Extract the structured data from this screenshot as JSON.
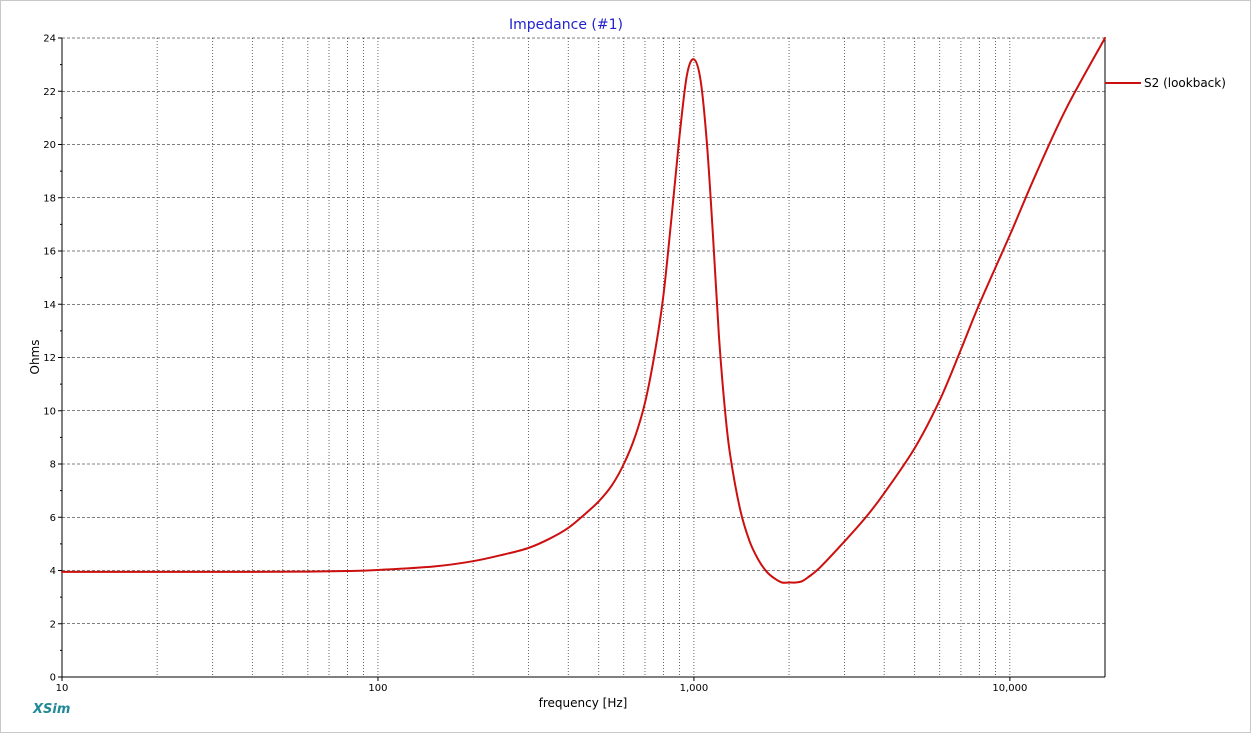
{
  "app": {
    "brand": "XSim"
  },
  "colors": {
    "title": "#1f1fd0",
    "series": "#cc1010",
    "brand": "#1f8a96",
    "grid": "#8a8a8a"
  },
  "chart_data": {
    "type": "line",
    "title": "Impedance (#1)",
    "xlabel": "frequency [Hz]",
    "ylabel": "Ohms",
    "xscale": "log",
    "xlim": [
      10,
      20000
    ],
    "ylim": [
      0,
      24
    ],
    "grid": true,
    "legend_position": "right",
    "x_ticks": [
      {
        "value": 10,
        "label": "10"
      },
      {
        "value": 100,
        "label": "100"
      },
      {
        "value": 1000,
        "label": "1,000"
      },
      {
        "value": 10000,
        "label": "10,000"
      }
    ],
    "y_ticks": [
      {
        "value": 0,
        "label": "0"
      },
      {
        "value": 2,
        "label": "2"
      },
      {
        "value": 4,
        "label": "4"
      },
      {
        "value": 6,
        "label": "6"
      },
      {
        "value": 8,
        "label": "8"
      },
      {
        "value": 10,
        "label": "10"
      },
      {
        "value": 12,
        "label": "12"
      },
      {
        "value": 14,
        "label": "14"
      },
      {
        "value": 16,
        "label": "16"
      },
      {
        "value": 18,
        "label": "18"
      },
      {
        "value": 20,
        "label": "20"
      },
      {
        "value": 22,
        "label": "22"
      },
      {
        "value": 24,
        "label": "24"
      }
    ],
    "series": [
      {
        "name": "S2 (lookback)",
        "x": [
          10,
          20,
          40,
          60,
          80,
          100,
          150,
          200,
          250,
          300,
          350,
          400,
          450,
          500,
          550,
          600,
          650,
          700,
          750,
          800,
          850,
          900,
          950,
          1000,
          1050,
          1100,
          1150,
          1200,
          1250,
          1300,
          1400,
          1500,
          1600,
          1700,
          1800,
          1900,
          2000,
          2100,
          2200,
          2300,
          2500,
          3000,
          3500,
          4000,
          5000,
          6000,
          7000,
          8000,
          10000,
          12000,
          15000,
          20000
        ],
        "y": [
          3.95,
          3.95,
          3.95,
          3.96,
          3.98,
          4.02,
          4.15,
          4.35,
          4.6,
          4.85,
          5.2,
          5.6,
          6.1,
          6.6,
          7.2,
          8.0,
          9.0,
          10.3,
          12.1,
          14.3,
          17.3,
          20.3,
          22.6,
          23.2,
          22.4,
          20.0,
          16.5,
          12.8,
          10.2,
          8.4,
          6.3,
          5.1,
          4.4,
          3.95,
          3.7,
          3.55,
          3.55,
          3.55,
          3.6,
          3.75,
          4.1,
          5.1,
          6.0,
          6.9,
          8.6,
          10.4,
          12.3,
          14.0,
          16.6,
          18.8,
          21.3,
          24.0
        ]
      }
    ]
  }
}
